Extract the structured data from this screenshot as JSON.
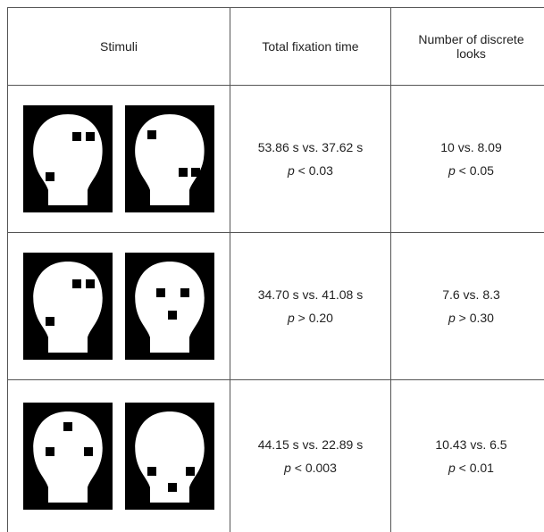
{
  "table": {
    "header": [
      "Stimuli",
      "Total fixation time",
      "Number of discrete looks"
    ],
    "rows": [
      {
        "fixation": "53.86 s vs. 37.62 s",
        "fixation_stat": "p",
        "fixation_test": "< 0.03",
        "looks": "10 vs. 8.09",
        "looks_stat": "p",
        "looks_test": "< 0.05"
      },
      {
        "fixation": "34.70 s vs. 41.08 s",
        "fixation_stat": "p",
        "fixation_test": "> 0.20",
        "looks": "7.6 vs. 8.3",
        "looks_stat": "p",
        "looks_test": "> 0.30"
      },
      {
        "fixation": "44.15 s vs. 22.89 s",
        "fixation_stat": "p",
        "fixation_test": "< 0.003",
        "looks": "10.43 vs. 6.5",
        "looks_stat": "p",
        "looks_test": "< 0.01"
      }
    ]
  }
}
